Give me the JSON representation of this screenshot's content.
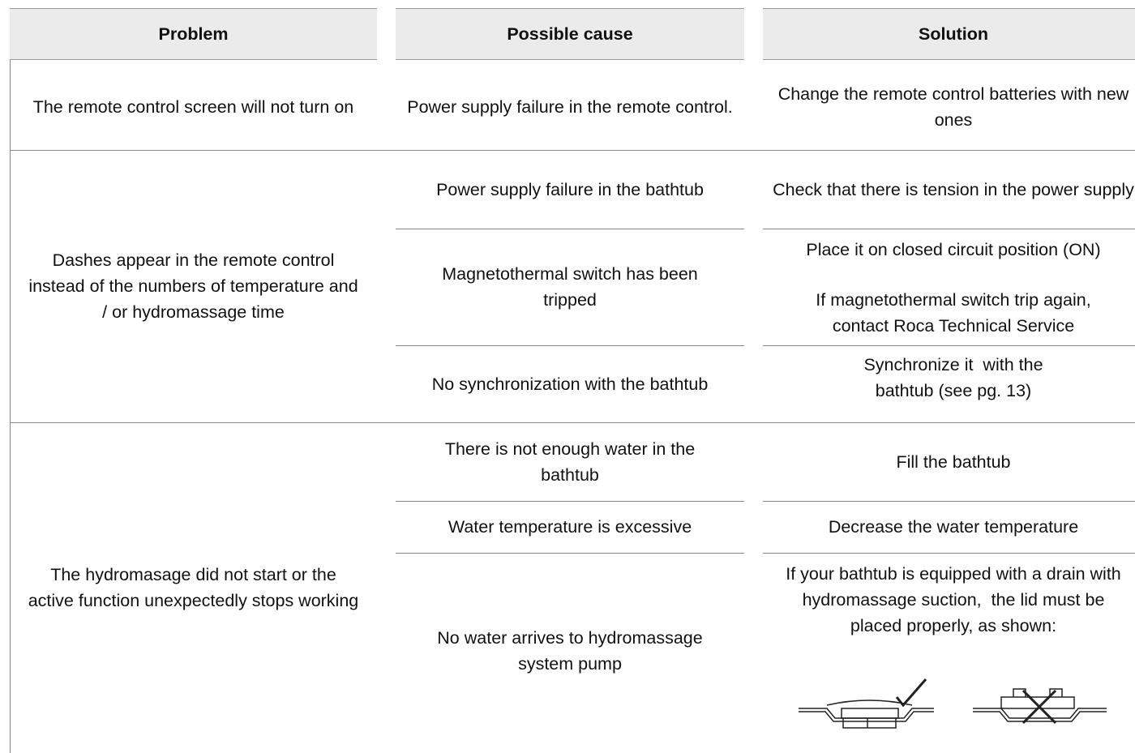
{
  "header": {
    "columns": [
      "Problem",
      "Possible cause",
      "Solution"
    ]
  },
  "rows": [
    {
      "problem": "The remote control screen will not turn on",
      "items": [
        {
          "cause": "Power supply failure in the remote control.",
          "solution": [
            "Change the remote control batteries with new ones"
          ]
        }
      ]
    },
    {
      "problem": "Dashes appear in the remote control instead of the numbers of temperature and / or hydromassage time",
      "items": [
        {
          "cause": "Power supply failure in the bathtub",
          "solution": [
            "Check that there is tension in the power supply"
          ]
        },
        {
          "cause": "Magnetothermal switch has been tripped",
          "solution": [
            "Place it on closed circuit position (ON)",
            "If magnetothermal switch trip again, contact Roca Technical Service"
          ]
        },
        {
          "cause": "No synchronization with the bathtub",
          "solution": [
            "Synchronize it  with the bathtub (see pg. 13)"
          ]
        }
      ]
    },
    {
      "problem": "The hydromasage did not start or the active function unexpectedly stops working",
      "items": [
        {
          "cause": "There is not enough water in the bathtub",
          "solution": [
            "Fill the bathtub"
          ]
        },
        {
          "cause": "Water temperature is excessive",
          "solution": [
            "Decrease the water temperature"
          ]
        },
        {
          "cause": "No water arrives to hydromassage system pump",
          "solution": [
            "If your bathtub is equipped with a drain with hydromassage suction,  the lid must be placed properly, as shown:"
          ]
        }
      ]
    }
  ]
}
